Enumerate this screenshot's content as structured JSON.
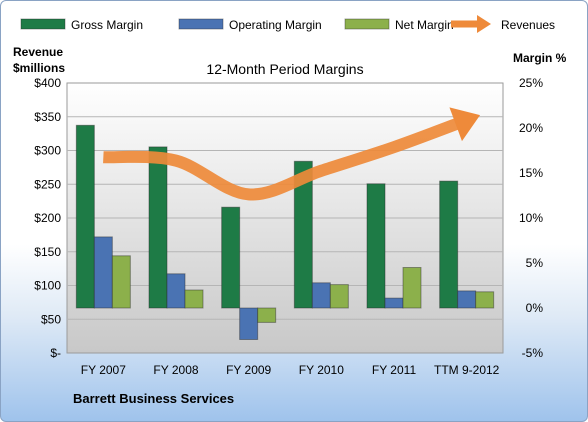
{
  "chart_data": {
    "type": "bar",
    "title": "12-Month Period Margins",
    "footer": "Barrett Business Services",
    "categories": [
      "FY 2007",
      "FY 2008",
      "FY 2009",
      "FY 2010",
      "FY 2011",
      "TTM 9-2012"
    ],
    "y_left": {
      "label_line1": "Revenue",
      "label_line2": "$millions",
      "range": [
        0,
        400
      ],
      "ticks": [
        "$-",
        "$50",
        "$100",
        "$150",
        "$200",
        "$250",
        "$300",
        "$350",
        "$400"
      ]
    },
    "y_right": {
      "label": "Margin %",
      "range": [
        -5,
        25
      ],
      "ticks": [
        "-5%",
        "0%",
        "5%",
        "10%",
        "15%",
        "20%",
        "25%"
      ]
    },
    "series": [
      {
        "name": "Gross Margin",
        "type": "bar",
        "axis": "right",
        "color": "#1e7b46",
        "values": [
          20.3,
          17.9,
          11.2,
          16.3,
          13.8,
          14.1
        ]
      },
      {
        "name": "Operating Margin",
        "type": "bar",
        "axis": "right",
        "color": "#4a73b3",
        "values": [
          7.9,
          3.8,
          -3.5,
          2.8,
          1.1,
          1.9
        ]
      },
      {
        "name": "Net Margin",
        "type": "bar",
        "axis": "right",
        "color": "#8cb04b",
        "values": [
          5.8,
          2.0,
          -1.6,
          2.6,
          4.5,
          1.8
        ]
      },
      {
        "name": "Revenues",
        "type": "line",
        "axis": "left",
        "color": "#ee8a3a",
        "values": [
          290,
          285,
          235,
          270,
          305,
          345
        ]
      }
    ],
    "grid": true,
    "legend": "top"
  }
}
